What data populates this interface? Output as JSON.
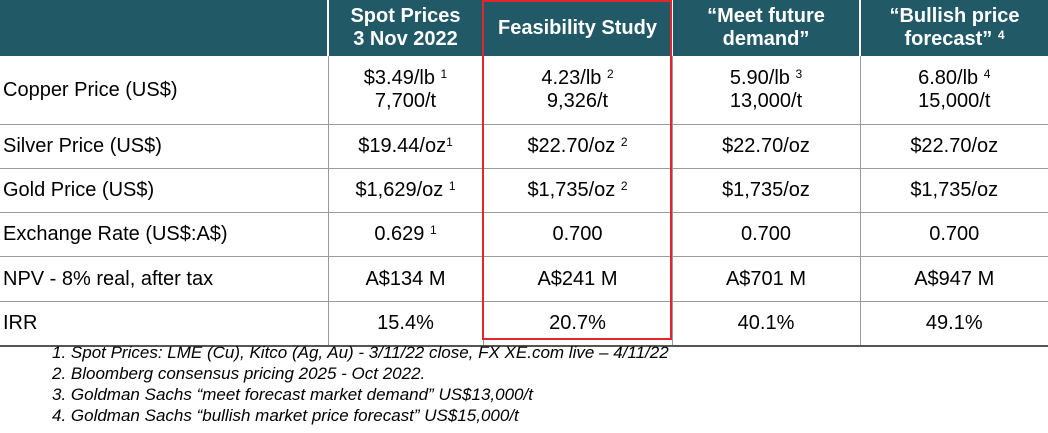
{
  "table": {
    "headers": [
      {
        "line1": "Spot Prices",
        "line2": "3 Nov 2022",
        "sup": ""
      },
      {
        "line1": "Feasibility Study",
        "line2": "",
        "sup": ""
      },
      {
        "line1": "“Meet future",
        "line2": "demand”",
        "sup": ""
      },
      {
        "line1": "“Bullish price",
        "line2": "forecast”",
        "sup": "4"
      }
    ],
    "rows": [
      {
        "label": "Copper Price (US$)",
        "cells": [
          {
            "line1": "$3.49/lb",
            "sup": "1",
            "line2": "7,700/t"
          },
          {
            "line1": "4.23/lb",
            "sup": "2",
            "line2": "9,326/t"
          },
          {
            "line1": "5.90/lb",
            "sup": "3",
            "line2": "13,000/t"
          },
          {
            "line1": "6.80/lb",
            "sup": "4",
            "line2": "15,000/t"
          }
        ]
      },
      {
        "label": "Silver Price (US$)",
        "cells": [
          {
            "line1": "$19.44/oz",
            "sup": "1",
            "line2": ""
          },
          {
            "line1": "$22.70/oz",
            "sup": "2",
            "line2": ""
          },
          {
            "line1": "$22.70/oz",
            "sup": "",
            "line2": ""
          },
          {
            "line1": "$22.70/oz",
            "sup": "",
            "line2": ""
          }
        ]
      },
      {
        "label": "Gold Price (US$)",
        "cells": [
          {
            "line1": "$1,629/oz",
            "sup": "1",
            "line2": ""
          },
          {
            "line1": "$1,735/oz",
            "sup": "2",
            "line2": ""
          },
          {
            "line1": "$1,735/oz",
            "sup": "",
            "line2": ""
          },
          {
            "line1": "$1,735/oz",
            "sup": "",
            "line2": ""
          }
        ]
      },
      {
        "label": "Exchange Rate (US$:A$)",
        "cells": [
          {
            "line1": "0.629",
            "sup": "1",
            "line2": ""
          },
          {
            "line1": "0.700",
            "sup": "",
            "line2": ""
          },
          {
            "line1": "0.700",
            "sup": "",
            "line2": ""
          },
          {
            "line1": "0.700",
            "sup": "",
            "line2": ""
          }
        ]
      },
      {
        "label": "NPV - 8% real, after tax",
        "cells": [
          {
            "line1": "A$134 M",
            "sup": "",
            "line2": ""
          },
          {
            "line1": "A$241 M",
            "sup": "",
            "line2": ""
          },
          {
            "line1": "A$701 M",
            "sup": "",
            "line2": ""
          },
          {
            "line1": "A$947 M",
            "sup": "",
            "line2": ""
          }
        ]
      },
      {
        "label": "IRR",
        "cells": [
          {
            "line1": "15.4%",
            "sup": "",
            "line2": ""
          },
          {
            "line1": "20.7%",
            "sup": "",
            "line2": ""
          },
          {
            "line1": "40.1%",
            "sup": "",
            "line2": ""
          },
          {
            "line1": "49.1%",
            "sup": "",
            "line2": ""
          }
        ]
      }
    ]
  },
  "notes": [
    "1. Spot Prices: LME (Cu), Kitco (Ag, Au) - 3/11/22 close, FX XE.com live – 4/11/22",
    "2. Bloomberg consensus pricing 2025 - Oct 2022.",
    "3. Goldman Sachs “meet forecast market demand” US$13,000/t",
    "4. Goldman Sachs “bullish market price forecast” US$15,000/t"
  ],
  "colors": {
    "header_bg": "#215967",
    "highlight_border": "#e2262d"
  }
}
